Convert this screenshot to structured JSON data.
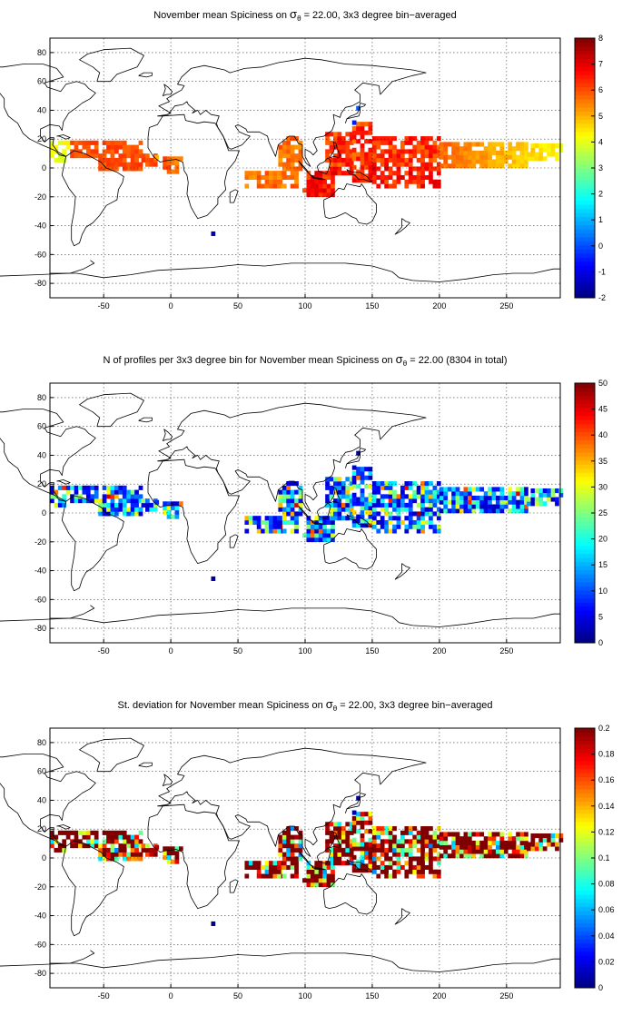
{
  "maps": [
    {
      "title_pre": "November mean Spiciness on ",
      "title_sym": "σ",
      "title_sub": "θ",
      "title_post": " = 22.00, 3x3 degree bin−averaged",
      "x_ticks": [
        "-50",
        "0",
        "50",
        "100",
        "150",
        "200",
        "250"
      ],
      "y_ticks": [
        "80",
        "60",
        "40",
        "20",
        "0",
        "-20",
        "-40",
        "-60",
        "-80"
      ],
      "colorbar_ticks": [
        "8",
        "7",
        "6",
        "5",
        "4",
        "3",
        "2",
        "1",
        "0",
        "-1",
        "-2"
      ],
      "clim": [
        -2,
        8
      ],
      "cell_hint": "spice"
    },
    {
      "title_pre": "N of profiles per 3x3 degree bin for November mean Spiciness on ",
      "title_sym": "σ",
      "title_sub": "θ",
      "title_post": " = 22.00 (8304 in total)",
      "x_ticks": [
        "-50",
        "0",
        "50",
        "100",
        "150",
        "200",
        "250"
      ],
      "y_ticks": [
        "80",
        "60",
        "40",
        "20",
        "0",
        "-20",
        "-40",
        "-60",
        "-80"
      ],
      "colorbar_ticks": [
        "50",
        "45",
        "40",
        "35",
        "30",
        "25",
        "20",
        "15",
        "10",
        "5",
        "0"
      ],
      "clim": [
        0,
        50
      ],
      "cell_hint": "count"
    },
    {
      "title_pre": "St. deviation for November mean Spiciness on ",
      "title_sym": "σ",
      "title_sub": "θ",
      "title_post": " = 22.00, 3x3 degree bin−averaged",
      "x_ticks": [
        "-50",
        "0",
        "50",
        "100",
        "150",
        "200",
        "250"
      ],
      "y_ticks": [
        "80",
        "60",
        "40",
        "20",
        "0",
        "-20",
        "-40",
        "-60",
        "-80"
      ],
      "colorbar_ticks": [
        "0.2",
        "0.18",
        "0.16",
        "0.14",
        "0.12",
        "0.1",
        "0.08",
        "0.06",
        "0.04",
        "0.02",
        "0"
      ],
      "clim": [
        0,
        0.2
      ],
      "cell_hint": "std"
    }
  ],
  "colormap": "jet",
  "lon_range": [
    -90,
    290
  ],
  "lat_range": [
    -90,
    90
  ]
}
